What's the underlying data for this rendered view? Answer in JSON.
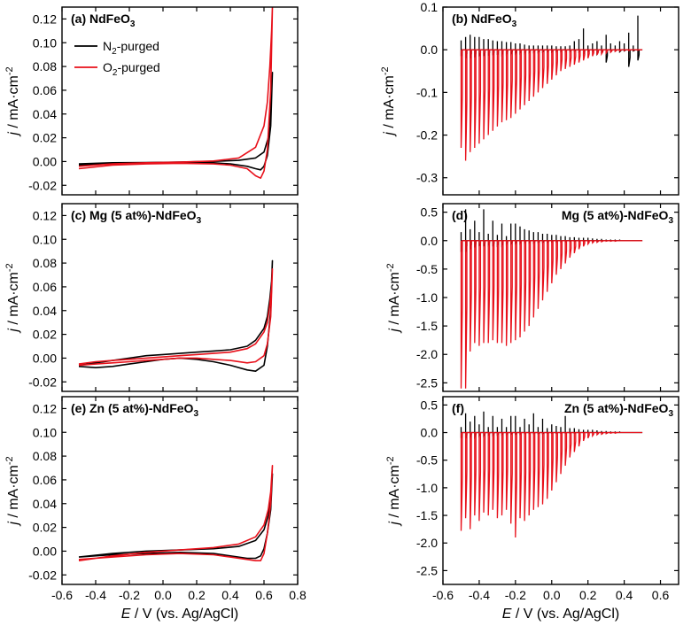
{
  "colors": {
    "n2": "#000000",
    "o2": "#e8101a"
  },
  "legend": {
    "n2": {
      "base": "N",
      "sub": "2",
      "rest": "-purged"
    },
    "o2": {
      "base": "O",
      "sub": "2",
      "rest": "-purged"
    }
  },
  "xaxis": {
    "label_italic": "E",
    "label_rest": " / V (vs. Ag/AgCl)"
  },
  "chart_data": [
    {
      "id": "a",
      "type": "line",
      "title_main": "(a) NdFeO",
      "title_sub": "3",
      "ylabel_italic": "j",
      "ylabel_rest": " / mA·cm",
      "ylabel_sup": "-2",
      "xlim": [
        -0.6,
        0.8
      ],
      "ylim": [
        -0.028,
        0.13
      ],
      "xticks": [
        "-0.6",
        "-0.4",
        "-0.2",
        "0.0",
        "0.2",
        "0.4",
        "0.6",
        "0.8"
      ],
      "yticks": [
        "-0.02",
        "0.00",
        "0.02",
        "0.04",
        "0.06",
        "0.08",
        "0.10",
        "0.12"
      ],
      "legend_position": "top-left",
      "series": [
        {
          "key": "n2",
          "name": "N2-purged",
          "x": [
            -0.5,
            -0.3,
            -0.1,
            0.1,
            0.3,
            0.45,
            0.55,
            0.6,
            0.625,
            0.64,
            0.65,
            0.65,
            0.64,
            0.62,
            0.6,
            0.58,
            0.55,
            0.5,
            0.4,
            0.3,
            0.1,
            -0.1,
            -0.3,
            -0.5
          ],
          "y": [
            -0.002,
            -0.001,
            -0.0008,
            -0.0005,
            0.0002,
            0.001,
            0.003,
            0.008,
            0.02,
            0.045,
            0.075,
            0.075,
            0.03,
            0.005,
            -0.004,
            -0.007,
            -0.006,
            -0.004,
            -0.002,
            -0.001,
            -0.0008,
            -0.001,
            -0.0015,
            -0.003
          ]
        },
        {
          "key": "o2",
          "name": "O2-purged",
          "x": [
            -0.5,
            -0.3,
            -0.1,
            0.1,
            0.3,
            0.45,
            0.55,
            0.6,
            0.62,
            0.635,
            0.645,
            0.65,
            0.65,
            0.64,
            0.62,
            0.6,
            0.58,
            0.55,
            0.5,
            0.4,
            0.3,
            0.1,
            -0.1,
            -0.3,
            -0.5
          ],
          "y": [
            -0.004,
            -0.002,
            -0.001,
            -0.0005,
            0.0005,
            0.003,
            0.012,
            0.03,
            0.05,
            0.08,
            0.11,
            0.13,
            0.13,
            0.06,
            0.01,
            -0.008,
            -0.014,
            -0.012,
            -0.006,
            -0.003,
            -0.002,
            -0.0015,
            -0.002,
            -0.003,
            -0.006
          ]
        }
      ]
    },
    {
      "id": "b",
      "type": "line",
      "title_main": "(b) NdFeO",
      "title_sub": "3",
      "ylabel_italic": "j",
      "ylabel_rest": " / mA·cm",
      "ylabel_sup": "-2",
      "xlim": [
        -0.6,
        0.7
      ],
      "ylim": [
        -0.34,
        0.1
      ],
      "xticks": [
        "-0.6",
        "-0.4",
        "-0.2",
        "0.0",
        "0.2",
        "0.4",
        "0.6"
      ],
      "yticks": [
        "-0.3",
        "-0.2",
        "-0.1",
        "0.0",
        "0.1"
      ],
      "pulse_start": -0.5,
      "pulse_step": 0.025,
      "pulse_on": 0.007,
      "pulse_n": 40,
      "series": [
        {
          "key": "n2",
          "name": "N2-purged",
          "tip_up": [
            0.022,
            0.03,
            0.035,
            0.03,
            0.03,
            0.025,
            0.025,
            0.022,
            0.02,
            0.02,
            0.018,
            0.018,
            0.015,
            0.015,
            0.012,
            0.01,
            0.01,
            0.01,
            0.01,
            0.01,
            0.01,
            0.008,
            0.008,
            0.008,
            0.01,
            0.02,
            0.025,
            0.05,
            0.01,
            0.015,
            0.02,
            0.01,
            0.035,
            0.015,
            0.01,
            0.02,
            0.015,
            0.04,
            0.01,
            0.08
          ],
          "tip_down": [
            -0.015,
            -0.02,
            -0.02,
            -0.018,
            -0.016,
            -0.015,
            -0.014,
            -0.013,
            -0.012,
            -0.011,
            -0.01,
            -0.01,
            -0.009,
            -0.008,
            -0.008,
            -0.007,
            -0.006,
            -0.006,
            -0.005,
            -0.005,
            -0.005,
            -0.004,
            -0.004,
            -0.004,
            -0.004,
            -0.003,
            -0.005,
            -0.01,
            -0.004,
            -0.003,
            -0.01,
            -0.005,
            -0.03,
            -0.004,
            -0.003,
            -0.005,
            -0.003,
            -0.04,
            -0.003,
            -0.025
          ]
        },
        {
          "key": "o2",
          "name": "O2-purged",
          "tip_up": [],
          "tip_down": [
            -0.23,
            -0.26,
            -0.24,
            -0.23,
            -0.22,
            -0.21,
            -0.2,
            -0.19,
            -0.18,
            -0.17,
            -0.165,
            -0.16,
            -0.15,
            -0.14,
            -0.13,
            -0.12,
            -0.11,
            -0.1,
            -0.09,
            -0.08,
            -0.07,
            -0.06,
            -0.05,
            -0.045,
            -0.04,
            -0.035,
            -0.03,
            -0.025,
            -0.02,
            -0.015,
            -0.012,
            -0.01,
            -0.008,
            -0.006,
            -0.004,
            -0.003,
            -0.002,
            -0.002,
            -0.001,
            -0.001
          ]
        }
      ]
    },
    {
      "id": "c",
      "type": "line",
      "title_main": "(c) Mg (5 at%)-NdFeO",
      "title_sub": "3",
      "ylabel_italic": "j",
      "ylabel_rest": " / mA·cm",
      "ylabel_sup": "-2",
      "xlim": [
        -0.6,
        0.8
      ],
      "ylim": [
        -0.028,
        0.13
      ],
      "xticks": [
        "-0.6",
        "-0.4",
        "-0.2",
        "0.0",
        "0.2",
        "0.4",
        "0.6",
        "0.8"
      ],
      "yticks": [
        "-0.02",
        "0.00",
        "0.02",
        "0.04",
        "0.06",
        "0.08",
        "0.10",
        "0.12"
      ],
      "series": [
        {
          "key": "n2",
          "name": "N2-purged",
          "x": [
            -0.5,
            -0.4,
            -0.3,
            -0.2,
            -0.1,
            0.0,
            0.1,
            0.2,
            0.3,
            0.4,
            0.5,
            0.55,
            0.6,
            0.62,
            0.635,
            0.645,
            0.65,
            0.65,
            0.64,
            0.62,
            0.6,
            0.55,
            0.5,
            0.4,
            0.3,
            0.2,
            0.1,
            0.0,
            -0.1,
            -0.2,
            -0.3,
            -0.4,
            -0.5
          ],
          "y": [
            -0.006,
            -0.004,
            -0.002,
            0.0,
            0.002,
            0.003,
            0.004,
            0.005,
            0.006,
            0.007,
            0.01,
            0.015,
            0.025,
            0.035,
            0.05,
            0.065,
            0.082,
            0.082,
            0.04,
            0.01,
            -0.006,
            -0.011,
            -0.01,
            -0.006,
            -0.003,
            -0.001,
            0.0,
            -0.001,
            -0.003,
            -0.005,
            -0.007,
            -0.008,
            -0.007
          ]
        },
        {
          "key": "o2",
          "name": "O2-purged",
          "x": [
            -0.5,
            -0.4,
            -0.3,
            -0.2,
            -0.1,
            0.0,
            0.1,
            0.2,
            0.3,
            0.4,
            0.5,
            0.55,
            0.6,
            0.62,
            0.635,
            0.645,
            0.65,
            0.65,
            0.64,
            0.62,
            0.6,
            0.55,
            0.5,
            0.4,
            0.3,
            0.2,
            0.1,
            0.0,
            -0.1,
            -0.2,
            -0.3,
            -0.4,
            -0.5
          ],
          "y": [
            -0.005,
            -0.003,
            -0.002,
            -0.001,
            0.0,
            0.001,
            0.002,
            0.003,
            0.004,
            0.005,
            0.008,
            0.012,
            0.022,
            0.03,
            0.045,
            0.06,
            0.075,
            0.075,
            0.035,
            0.012,
            0.002,
            -0.003,
            -0.004,
            -0.002,
            -0.001,
            0.0,
            0.0,
            -0.001,
            -0.002,
            -0.003,
            -0.004,
            -0.005,
            -0.006
          ]
        }
      ]
    },
    {
      "id": "d",
      "type": "line",
      "title_main": "(d)",
      "title2_main": "Mg (5 at%)-NdFeO",
      "title2_sub": "3",
      "ylabel_italic": "j",
      "ylabel_rest": " / mA·cm",
      "ylabel_sup": "-2",
      "xlim": [
        -0.6,
        0.7
      ],
      "ylim": [
        -2.65,
        0.65
      ],
      "xticks": [
        "-0.6",
        "-0.4",
        "-0.2",
        "0.0",
        "0.2",
        "0.4",
        "0.6"
      ],
      "yticks": [
        "-2.5",
        "-2.0",
        "-1.5",
        "-1.0",
        "-0.5",
        "0.0",
        "0.5"
      ],
      "pulse_start": -0.5,
      "pulse_step": 0.025,
      "pulse_on": 0.007,
      "pulse_n": 40,
      "series": [
        {
          "key": "n2",
          "name": "N2-purged",
          "tip_up": [
            0.15,
            0.55,
            0.2,
            0.35,
            0.15,
            0.55,
            0.12,
            0.35,
            0.1,
            0.3,
            0.08,
            0.3,
            0.3,
            0.25,
            0.2,
            0.18,
            0.15,
            0.15,
            0.12,
            0.12,
            0.1,
            0.1,
            0.08,
            0.08,
            0.06,
            0.06,
            0.05,
            0.05,
            0.05,
            0.04,
            0.03,
            0.03,
            0.02,
            0.02,
            0.02,
            0.02,
            0.01,
            0.01,
            0.01,
            0.01
          ],
          "tip_down": [
            -0.2,
            -0.2,
            -0.15,
            -0.12,
            -0.1,
            -0.1,
            -0.08,
            -0.1,
            -0.08,
            -0.08,
            -0.06,
            -0.06,
            -0.05,
            -0.05,
            -0.04,
            -0.04,
            -0.04,
            -0.03,
            -0.03,
            -0.03,
            -0.02,
            -0.02,
            -0.02,
            -0.02,
            -0.01,
            -0.01,
            -0.01,
            -0.01,
            -0.01,
            -0.01,
            -0.01,
            0,
            0,
            0,
            0,
            0,
            0,
            0,
            0,
            0
          ]
        },
        {
          "key": "o2",
          "name": "O2-purged",
          "tip_up": [],
          "tip_down": [
            -2.6,
            -2.6,
            -1.95,
            -1.8,
            -1.85,
            -1.8,
            -1.8,
            -1.75,
            -1.8,
            -1.8,
            -1.85,
            -1.8,
            -1.75,
            -1.7,
            -1.6,
            -1.5,
            -1.35,
            -1.2,
            -1.05,
            -0.9,
            -0.75,
            -0.6,
            -0.5,
            -0.4,
            -0.3,
            -0.22,
            -0.15,
            -0.1,
            -0.06,
            -0.04,
            -0.03,
            -0.02,
            -0.01,
            -0.01,
            -0.01,
            0,
            0,
            0,
            0,
            0
          ]
        }
      ]
    },
    {
      "id": "e",
      "type": "line",
      "title_main": "(e) Zn (5 at%)-NdFeO",
      "title_sub": "3",
      "ylabel_italic": "j",
      "ylabel_rest": " / mA·cm",
      "ylabel_sup": "-2",
      "xlim": [
        -0.6,
        0.8
      ],
      "ylim": [
        -0.028,
        0.13
      ],
      "xticks": [
        "-0.6",
        "-0.4",
        "-0.2",
        "0.0",
        "0.2",
        "0.4",
        "0.6",
        "0.8"
      ],
      "yticks": [
        "-0.02",
        "0.00",
        "0.02",
        "0.04",
        "0.06",
        "0.08",
        "0.10",
        "0.12"
      ],
      "series": [
        {
          "key": "n2",
          "name": "N2-purged",
          "x": [
            -0.5,
            -0.3,
            -0.1,
            0.1,
            0.3,
            0.45,
            0.55,
            0.6,
            0.625,
            0.64,
            0.65,
            0.65,
            0.64,
            0.62,
            0.6,
            0.58,
            0.55,
            0.5,
            0.4,
            0.3,
            0.1,
            -0.1,
            -0.3,
            -0.5
          ],
          "y": [
            -0.005,
            -0.002,
            0.0,
            0.001,
            0.002,
            0.004,
            0.009,
            0.018,
            0.03,
            0.045,
            0.065,
            0.065,
            0.035,
            0.015,
            0.002,
            -0.004,
            -0.006,
            -0.006,
            -0.004,
            -0.002,
            -0.001,
            -0.002,
            -0.003,
            -0.005
          ]
        },
        {
          "key": "o2",
          "name": "O2-purged",
          "x": [
            -0.5,
            -0.3,
            -0.1,
            0.1,
            0.3,
            0.45,
            0.55,
            0.6,
            0.625,
            0.64,
            0.65,
            0.65,
            0.64,
            0.62,
            0.6,
            0.58,
            0.55,
            0.5,
            0.4,
            0.3,
            0.1,
            -0.1,
            -0.3,
            -0.5
          ],
          "y": [
            -0.008,
            -0.004,
            -0.001,
            0.001,
            0.003,
            0.006,
            0.012,
            0.022,
            0.035,
            0.05,
            0.072,
            0.072,
            0.04,
            0.015,
            -0.002,
            -0.008,
            -0.008,
            -0.007,
            -0.005,
            -0.003,
            -0.002,
            -0.003,
            -0.005,
            -0.007
          ]
        }
      ]
    },
    {
      "id": "f",
      "type": "line",
      "title_main": "(f)",
      "title2_main": "Zn (5 at%)-NdFeO",
      "title2_sub": "3",
      "ylabel_italic": "j",
      "ylabel_rest": " / mA·cm",
      "ylabel_sup": "-2",
      "xlim": [
        -0.6,
        0.7
      ],
      "ylim": [
        -2.75,
        0.65
      ],
      "xticks": [
        "-0.6",
        "-0.4",
        "-0.2",
        "0.0",
        "0.2",
        "0.4",
        "0.6"
      ],
      "yticks": [
        "-2.5",
        "-2.0",
        "-1.5",
        "-1.0",
        "-0.5",
        "0.0",
        "0.5"
      ],
      "pulse_start": -0.5,
      "pulse_step": 0.025,
      "pulse_on": 0.007,
      "pulse_n": 40,
      "series": [
        {
          "key": "n2",
          "name": "N2-purged",
          "tip_up": [
            0.1,
            0.35,
            0.2,
            0.3,
            0.15,
            0.38,
            0.1,
            0.3,
            0.1,
            0.25,
            0.1,
            0.3,
            0.3,
            0.1,
            0.25,
            0.15,
            0.35,
            0.1,
            0.25,
            0.08,
            0.15,
            0.12,
            0.1,
            0.3,
            0.08,
            0.08,
            0.06,
            0.05,
            0.05,
            0.05,
            0.04,
            0.03,
            0.03,
            0.02,
            0.02,
            0.02,
            0.01,
            0.01,
            0.01,
            0.01
          ],
          "tip_down": [
            -0.1,
            -0.1,
            -0.08,
            -0.08,
            -0.06,
            -0.06,
            -0.05,
            -0.05,
            -0.04,
            -0.04,
            -0.04,
            -0.03,
            -0.03,
            -0.03,
            -0.02,
            -0.02,
            -0.02,
            -0.02,
            -0.02,
            -0.01,
            -0.01,
            -0.01,
            -0.01,
            -0.01,
            -0.01,
            -0.01,
            0,
            0,
            0,
            0,
            0,
            0,
            0,
            0,
            0,
            0,
            0,
            0,
            0,
            0
          ]
        },
        {
          "key": "o2",
          "name": "O2-purged",
          "tip_up": [],
          "tip_down": [
            -1.78,
            -1.55,
            -1.75,
            -1.5,
            -1.6,
            -1.45,
            -1.5,
            -1.4,
            -1.55,
            -1.5,
            -1.4,
            -1.65,
            -1.9,
            -1.55,
            -1.6,
            -1.5,
            -1.4,
            -1.35,
            -1.3,
            -1.2,
            -1.05,
            -0.9,
            -0.75,
            -0.6,
            -0.45,
            -0.35,
            -0.25,
            -0.15,
            -0.1,
            -0.06,
            -0.04,
            -0.03,
            -0.02,
            -0.01,
            -0.01,
            0,
            0,
            0,
            0,
            0
          ]
        }
      ]
    }
  ]
}
